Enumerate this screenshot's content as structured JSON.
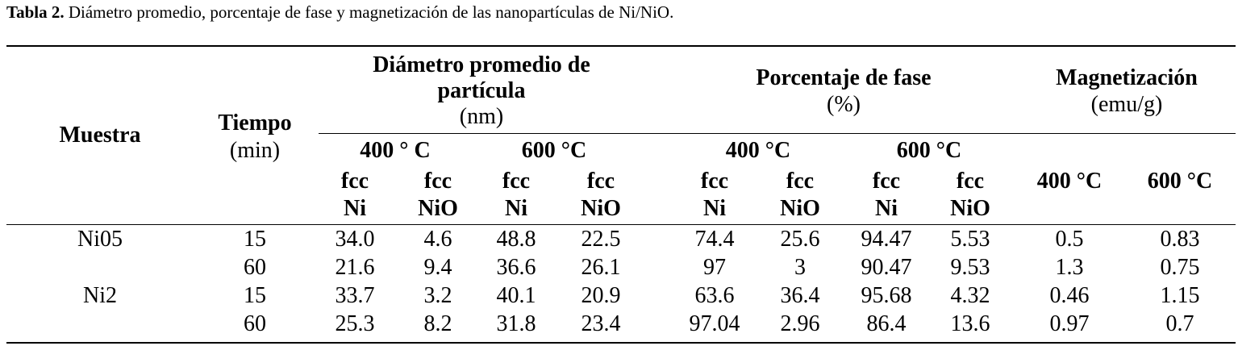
{
  "caption": {
    "label": "Tabla 2.",
    "text": " Diámetro promedio, porcentaje de fase y magnetización de las nanopartículas de Ni/NiO."
  },
  "headers": {
    "muestra": "Muestra",
    "tiempo": "Tiempo",
    "tiempo_unit": "(min)",
    "diametro_l1": "Diámetro promedio de",
    "diametro_l2": "partícula",
    "diametro_unit": "(nm)",
    "porcentaje": "Porcentaje de fase",
    "porcentaje_unit": "(%)",
    "magnetizacion": "Magnetización",
    "magnetizacion_unit": "(emu/g)",
    "temps": [
      "400 ° C",
      "600 °C",
      "400 °C",
      "600 °C",
      "400 °C",
      "600 °C"
    ],
    "phase_top": [
      "fcc",
      "fcc",
      "fcc",
      "fcc",
      "fcc",
      "fcc",
      "fcc",
      "fcc"
    ],
    "phase_bottom": [
      "Ni",
      "NiO",
      "Ni",
      "NiO",
      "Ni",
      "NiO",
      "Ni",
      "NiO"
    ]
  },
  "rows": [
    {
      "muestra": "Ni05",
      "tiempo": "15",
      "values": [
        "34.0",
        "4.6",
        "48.8",
        "22.5",
        "74.4",
        "25.6",
        "94.47",
        "5.53",
        "0.5",
        "0.83"
      ]
    },
    {
      "muestra": "",
      "tiempo": "60",
      "values": [
        "21.6",
        "9.4",
        "36.6",
        "26.1",
        "97",
        "3",
        "90.47",
        "9.53",
        "1.3",
        "0.75"
      ]
    },
    {
      "muestra": "Ni2",
      "tiempo": "15",
      "values": [
        "33.7",
        "3.2",
        "40.1",
        "20.9",
        "63.6",
        "36.4",
        "95.68",
        "4.32",
        "0.46",
        "1.15"
      ]
    },
    {
      "muestra": "",
      "tiempo": "60",
      "values": [
        "25.3",
        "8.2",
        "31.8",
        "23.4",
        "97.04",
        "2.96",
        "86.4",
        "13.6",
        "0.97",
        "0.7"
      ]
    }
  ]
}
